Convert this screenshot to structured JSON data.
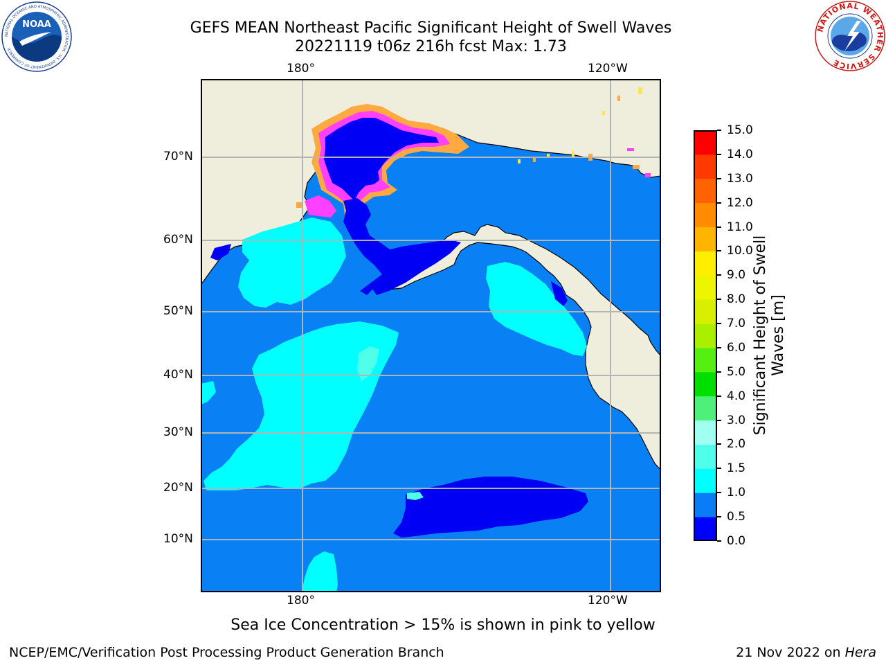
{
  "title": {
    "line1": "GEFS MEAN Northeast Pacific Significant Height of Swell Waves",
    "line2": "20221119 t06z 216h fcst   Max: 1.73"
  },
  "map": {
    "lon_labels_top": [
      "180°",
      "120°W"
    ],
    "lon_labels_bottom": [
      "180°",
      "120°W"
    ],
    "lat_labels": [
      "70°N",
      "60°N",
      "50°N",
      "40°N",
      "30°N",
      "20°N",
      "10°N"
    ],
    "colors": {
      "land": "#efeddc",
      "sea_0_0p5": "#0000f5",
      "sea_0p5_1": "#0a80f5",
      "sea_1_1p5": "#00ffff",
      "sea_1p5_2": "#50ffea",
      "ice_pink": "#ff30ff",
      "ice_orange": "#ffaa40",
      "ice_yellow": "#ffe650",
      "grid": "#b4b4b4"
    }
  },
  "colorbar": {
    "label_line1": "Significant Height of Swell",
    "label_line2": "Waves [m]",
    "ticks": [
      "0.0",
      "0.5",
      "1.0",
      "1.5",
      "2.0",
      "3.0",
      "4.0",
      "5.0",
      "6.0",
      "7.0",
      "8.0",
      "9.0",
      "10.0",
      "11.0",
      "12.0",
      "13.0",
      "14.0",
      "15.0"
    ],
    "colors": [
      "#0000ff",
      "#0a7cf5",
      "#00ffff",
      "#50ffea",
      "#a0fff0",
      "#4ef07a",
      "#00e000",
      "#55ef12",
      "#aaee00",
      "#d8f000",
      "#eef500",
      "#ffee00",
      "#ffb400",
      "#ff8c00",
      "#ff6200",
      "#ff3a00",
      "#ff0000"
    ]
  },
  "note": "Sea Ice Concentration > 15% is shown in pink to yellow",
  "footer": {
    "left": "NCEP/EMC/Verification Post Processing Product Generation Branch",
    "right_date": "21 Nov 2022 on ",
    "right_machine": "Hera"
  },
  "logos": {
    "noaa_text": "NOAA",
    "noaa_ring": "NATIONAL OCEANIC AND ATMOSPHERIC ADMINISTRATION · U.S. DEPARTMENT OF COMMERCE",
    "nws_ring": "NATIONAL WEATHER SERVICE"
  }
}
